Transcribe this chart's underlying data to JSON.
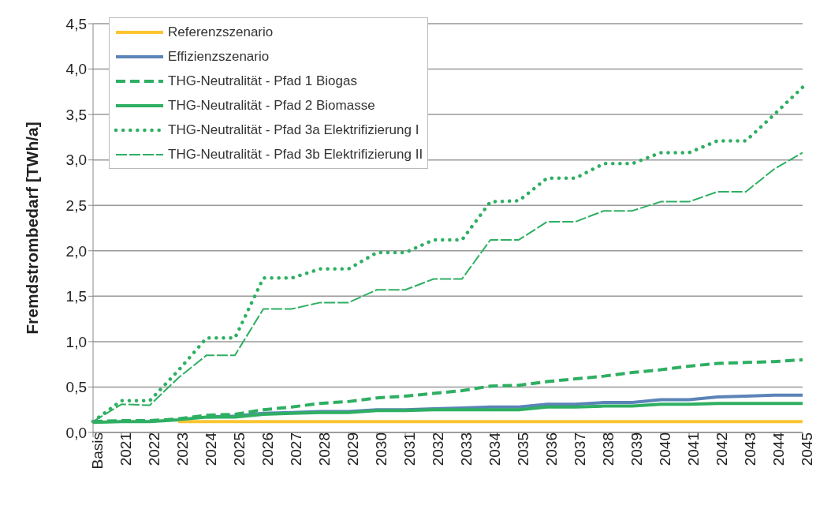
{
  "chart_data": {
    "type": "line",
    "ylabel": "Fremdstrombedarf [TWh/a]",
    "categories": [
      "Basis",
      "2021",
      "2022",
      "2023",
      "2024",
      "2025",
      "2026",
      "2027",
      "2028",
      "2029",
      "2030",
      "2031",
      "2032",
      "2033",
      "2034",
      "2035",
      "2036",
      "2037",
      "2038",
      "2039",
      "2040",
      "2041",
      "2042",
      "2043",
      "2044",
      "2045"
    ],
    "ylim": [
      0,
      4.5
    ],
    "yticks": [
      {
        "value": 0,
        "label": "0,0"
      },
      {
        "value": 0.5,
        "label": "0,5"
      },
      {
        "value": 1,
        "label": "1,0"
      },
      {
        "value": 1.5,
        "label": "1,5"
      },
      {
        "value": 2,
        "label": "2,0"
      },
      {
        "value": 2.5,
        "label": "2,5"
      },
      {
        "value": 3,
        "label": "3,0"
      },
      {
        "value": 3.5,
        "label": "3,5"
      },
      {
        "value": 4,
        "label": "4,0"
      },
      {
        "value": 4.5,
        "label": "4,5"
      }
    ],
    "grid": "y",
    "legend": "top left",
    "marker": "none",
    "series": [
      {
        "name": "Referenzszenario",
        "color": "#fbc531",
        "line_style": "solid",
        "values": [
          null,
          null,
          null,
          0.12,
          0.12,
          0.12,
          0.12,
          0.12,
          0.12,
          0.12,
          0.12,
          0.12,
          0.12,
          0.12,
          0.12,
          0.12,
          0.12,
          0.12,
          0.12,
          0.12,
          0.12,
          0.12,
          0.12,
          0.12,
          0.12,
          0.12
        ]
      },
      {
        "name": "Effizienzszenario",
        "color": "#5b84b8",
        "line_style": "solid",
        "values": [
          null,
          null,
          null,
          null,
          0.17,
          0.18,
          0.21,
          0.22,
          0.23,
          0.23,
          0.25,
          0.25,
          0.26,
          0.27,
          0.28,
          0.28,
          0.31,
          0.31,
          0.33,
          0.33,
          0.36,
          0.36,
          0.39,
          0.4,
          0.41,
          0.41
        ]
      },
      {
        "name": "THG-Neutralität - Pfad 1 Biogas",
        "color": "#2eaf62",
        "line_style": "dashed",
        "values": [
          0.12,
          0.13,
          0.13,
          0.15,
          0.19,
          0.2,
          0.25,
          0.28,
          0.32,
          0.34,
          0.38,
          0.4,
          0.43,
          0.46,
          0.51,
          0.52,
          0.56,
          0.59,
          0.62,
          0.66,
          0.69,
          0.73,
          0.76,
          0.77,
          0.78,
          0.8
        ]
      },
      {
        "name": "THG-Neutralität - Pfad 2 Biomasse",
        "color": "#2eaf62",
        "line_style": "solid",
        "values": [
          0.11,
          0.12,
          0.12,
          0.14,
          0.17,
          0.17,
          0.2,
          0.21,
          0.22,
          0.22,
          0.24,
          0.24,
          0.25,
          0.25,
          0.25,
          0.25,
          0.28,
          0.28,
          0.29,
          0.29,
          0.31,
          0.31,
          0.32,
          0.32,
          0.32,
          0.32
        ]
      },
      {
        "name": "THG-Neutralität - Pfad 3a Elektrifizierung I",
        "color": "#2eaf62",
        "line_style": "dotted",
        "values": [
          0.12,
          0.35,
          0.35,
          0.68,
          1.04,
          1.04,
          1.7,
          1.7,
          1.8,
          1.8,
          1.98,
          1.98,
          2.12,
          2.12,
          2.54,
          2.55,
          2.8,
          2.8,
          2.96,
          2.96,
          3.08,
          3.08,
          3.21,
          3.21,
          3.5,
          3.8
        ]
      },
      {
        "name": "THG-Neutralität - Pfad 3b Elektrifizierung II",
        "color": "#2eaf62",
        "line_style": "double",
        "values": [
          0.12,
          0.31,
          0.3,
          0.6,
          0.85,
          0.85,
          1.36,
          1.36,
          1.43,
          1.43,
          1.57,
          1.57,
          1.69,
          1.69,
          2.12,
          2.12,
          2.32,
          2.32,
          2.44,
          2.44,
          2.54,
          2.54,
          2.65,
          2.65,
          2.9,
          3.08
        ]
      }
    ]
  }
}
